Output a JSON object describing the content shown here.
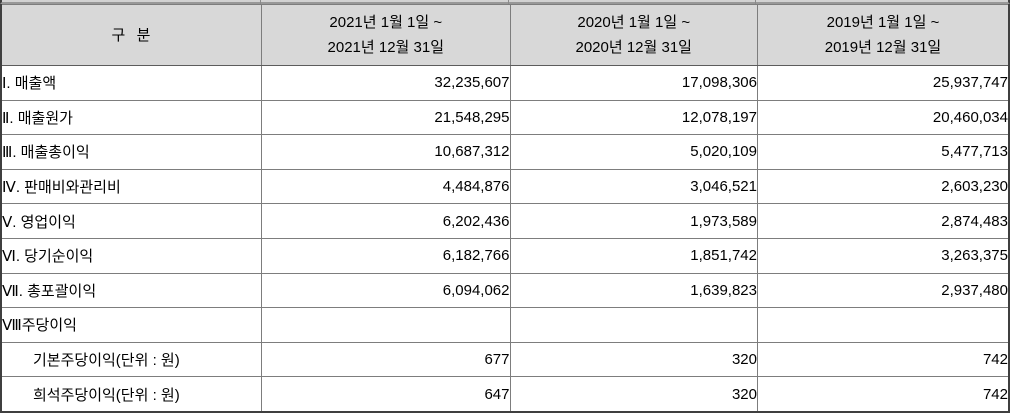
{
  "table": {
    "header": {
      "category_label": "구  분",
      "periods": [
        {
          "line1": "2021년 1월 1일 ~",
          "line2": "2021년 12월 31일"
        },
        {
          "line1": "2020년 1월 1일 ~",
          "line2": "2020년 12월 31일"
        },
        {
          "line1": "2019년 1월 1일 ~",
          "line2": "2019년 12월 31일"
        }
      ]
    },
    "rows": [
      {
        "label": "Ⅰ. 매출액",
        "values": [
          "32,235,607",
          "17,098,306",
          "25,937,747"
        ]
      },
      {
        "label": "Ⅱ. 매출원가",
        "values": [
          "21,548,295",
          "12,078,197",
          "20,460,034"
        ]
      },
      {
        "label": "Ⅲ. 매출총이익",
        "values": [
          "10,687,312",
          "5,020,109",
          "5,477,713"
        ]
      },
      {
        "label": "Ⅳ. 판매비와관리비",
        "values": [
          "4,484,876",
          "3,046,521",
          "2,603,230"
        ]
      },
      {
        "label": "Ⅴ. 영업이익",
        "values": [
          "6,202,436",
          "1,973,589",
          "2,874,483"
        ]
      },
      {
        "label": "Ⅵ. 당기순이익",
        "values": [
          "6,182,766",
          "1,851,742",
          "3,263,375"
        ]
      },
      {
        "label": "Ⅶ. 총포괄이익",
        "values": [
          "6,094,062",
          "1,639,823",
          "2,937,480"
        ]
      },
      {
        "label": "Ⅷ주당이익",
        "values": [
          "",
          "",
          ""
        ]
      },
      {
        "label": "기본주당이익(단위 : 원)",
        "values": [
          "677",
          "320",
          "742"
        ]
      },
      {
        "label": "희석주당이익(단위 : 원)",
        "values": [
          "647",
          "320",
          "742"
        ]
      }
    ],
    "colors": {
      "header_background": "#d8d8d8",
      "outer_border": "#3f3f3f",
      "inner_border": "#7d7d7d",
      "text": "#000000",
      "row_background": "#ffffff"
    }
  }
}
